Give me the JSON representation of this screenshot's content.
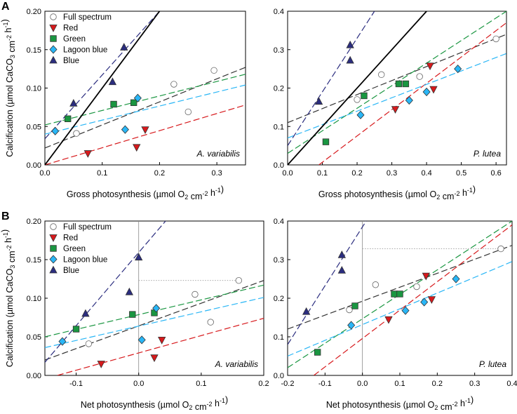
{
  "chart_data": [
    {
      "type": "scatter",
      "panel_label": "A",
      "species": "A. variabilis",
      "xlabel": "Gross photosynthesis (µmol O2 cm-2 h-1)",
      "ylabel": "Calcification (µmol CaCO3 cm-2 h-1)",
      "xlim": [
        0,
        0.35
      ],
      "ylim": [
        0,
        0.2
      ],
      "xticks": [
        "0.0",
        "0.1",
        "0.2",
        "0.3"
      ],
      "xtick_values": [
        0,
        0.1,
        0.2,
        0.3
      ],
      "yticks": [
        "0.00",
        "0.05",
        "0.10",
        "0.15",
        "0.20"
      ],
      "ytick_values": [
        0,
        0.05,
        0.1,
        0.15,
        0.2
      ],
      "legend": true,
      "zero_line": false,
      "series": [
        {
          "name": "Full spectrum",
          "marker": "circle",
          "color": "#ffffff",
          "points": [
            [
              0.055,
              0.041
            ],
            [
              0.225,
              0.105
            ],
            [
              0.25,
              0.069
            ],
            [
              0.295,
              0.123
            ]
          ]
        },
        {
          "name": "Red",
          "marker": "triangle-down",
          "color": "#d7191c",
          "points": [
            [
              0.075,
              0.015
            ],
            [
              0.16,
              0.023
            ],
            [
              0.175,
              0.046
            ]
          ]
        },
        {
          "name": "Green",
          "marker": "square",
          "color": "#1a9641",
          "points": [
            [
              0.04,
              0.06
            ],
            [
              0.12,
              0.079
            ],
            [
              0.155,
              0.081
            ]
          ]
        },
        {
          "name": "Lagoon blue",
          "marker": "diamond",
          "color": "#29b6f6",
          "points": [
            [
              0.018,
              0.044
            ],
            [
              0.14,
              0.046
            ],
            [
              0.162,
              0.087
            ]
          ]
        },
        {
          "name": "Blue",
          "marker": "triangle-up",
          "color": "#2b2d7f",
          "points": [
            [
              0.05,
              0.08
            ],
            [
              0.118,
              0.108
            ],
            [
              0.138,
              0.153
            ]
          ]
        }
      ],
      "fit_lines": [
        {
          "series": "Full spectrum",
          "color": "#333333",
          "dash": true,
          "x": [
            0,
            0.35
          ],
          "y": [
            0.022,
            0.127
          ]
        },
        {
          "series": "Red",
          "color": "#d7191c",
          "dash": true,
          "x": [
            0,
            0.35
          ],
          "y": [
            0.0,
            0.078
          ]
        },
        {
          "series": "Green",
          "color": "#1a9641",
          "dash": true,
          "x": [
            0,
            0.35
          ],
          "y": [
            0.052,
            0.118
          ]
        },
        {
          "series": "Lagoon blue",
          "color": "#29b6f6",
          "dash": true,
          "x": [
            0,
            0.35
          ],
          "y": [
            0.04,
            0.104
          ]
        },
        {
          "series": "Blue",
          "color": "#2b2d7f",
          "dash": true,
          "x": [
            0,
            0.2
          ],
          "y": [
            0.034,
            0.2
          ]
        },
        {
          "series": "1:1",
          "color": "#000000",
          "dash": false,
          "x": [
            0,
            0.2
          ],
          "y": [
            0,
            0.2
          ]
        }
      ],
      "ref_lines": []
    },
    {
      "type": "scatter",
      "panel_label": "",
      "species": "P. lutea",
      "xlabel": "Gross photosynthesis (µmol O2 cm-2 h-1)",
      "ylabel": "",
      "xlim": [
        0,
        0.63
      ],
      "ylim": [
        0,
        0.4
      ],
      "xticks": [
        "0.0",
        "0.1",
        "0.2",
        "0.3",
        "0.4",
        "0.5",
        "0.6"
      ],
      "xtick_values": [
        0,
        0.1,
        0.2,
        0.3,
        0.4,
        0.5,
        0.6
      ],
      "yticks": [
        "0.0",
        "0.1",
        "0.2",
        "0.3",
        "0.4"
      ],
      "ytick_values": [
        0,
        0.1,
        0.2,
        0.3,
        0.4
      ],
      "legend": false,
      "zero_line": false,
      "series": [
        {
          "name": "Full spectrum",
          "marker": "circle",
          "color": "#ffffff",
          "points": [
            [
              0.2,
              0.17
            ],
            [
              0.27,
              0.235
            ],
            [
              0.38,
              0.23
            ],
            [
              0.6,
              0.328
            ]
          ]
        },
        {
          "name": "Red",
          "marker": "triangle-down",
          "color": "#d7191c",
          "points": [
            [
              0.31,
              0.145
            ],
            [
              0.41,
              0.258
            ],
            [
              0.42,
              0.197
            ]
          ]
        },
        {
          "name": "Green",
          "marker": "square",
          "color": "#1a9641",
          "points": [
            [
              0.11,
              0.06
            ],
            [
              0.22,
              0.18
            ],
            [
              0.32,
              0.211
            ],
            [
              0.34,
              0.211
            ]
          ]
        },
        {
          "name": "Lagoon blue",
          "marker": "diamond",
          "color": "#29b6f6",
          "points": [
            [
              0.21,
              0.13
            ],
            [
              0.35,
              0.168
            ],
            [
              0.4,
              0.19
            ],
            [
              0.49,
              0.25
            ]
          ]
        },
        {
          "name": "Blue",
          "marker": "triangle-up",
          "color": "#2b2d7f",
          "points": [
            [
              0.09,
              0.165
            ],
            [
              0.18,
              0.312
            ],
            [
              0.18,
              0.272
            ]
          ]
        }
      ],
      "fit_lines": [
        {
          "series": "Full spectrum",
          "color": "#333333",
          "dash": true,
          "x": [
            0,
            0.63
          ],
          "y": [
            0.11,
            0.34
          ]
        },
        {
          "series": "Red",
          "color": "#d7191c",
          "dash": true,
          "x": [
            0.09,
            0.63
          ],
          "y": [
            0.0,
            0.37
          ]
        },
        {
          "series": "Green",
          "color": "#1a9641",
          "dash": true,
          "x": [
            0,
            0.63
          ],
          "y": [
            0.03,
            0.4
          ]
        },
        {
          "series": "Lagoon blue",
          "color": "#29b6f6",
          "dash": true,
          "x": [
            0,
            0.63
          ],
          "y": [
            0.07,
            0.29
          ]
        },
        {
          "series": "Blue",
          "color": "#2b2d7f",
          "dash": true,
          "x": [
            0,
            0.25
          ],
          "y": [
            0.05,
            0.4
          ]
        },
        {
          "series": "1:1",
          "color": "#000000",
          "dash": false,
          "x": [
            0,
            0.4
          ],
          "y": [
            0,
            0.4
          ]
        }
      ],
      "ref_lines": []
    },
    {
      "type": "scatter",
      "panel_label": "B",
      "species": "A. variabilis",
      "xlabel": "Net photosynthesis (µmol O2 cm-2 h-1)",
      "ylabel": "Calcification (µmol CaCO3 cm-2 h-1)",
      "xlim": [
        -0.15,
        0.2
      ],
      "ylim": [
        0,
        0.2
      ],
      "xticks": [
        "-0.1",
        "0.0",
        "0.1",
        "0.2"
      ],
      "xtick_values": [
        -0.1,
        0,
        0.1,
        0.2
      ],
      "yticks": [
        "0.00",
        "0.05",
        "0.10",
        "0.15",
        "0.20"
      ],
      "ytick_values": [
        0,
        0.05,
        0.1,
        0.15,
        0.2
      ],
      "legend": true,
      "zero_line": true,
      "series": [
        {
          "name": "Full spectrum",
          "marker": "circle",
          "color": "#ffffff",
          "points": [
            [
              -0.08,
              0.041
            ],
            [
              0.09,
              0.105
            ],
            [
              0.115,
              0.069
            ],
            [
              0.16,
              0.123
            ]
          ]
        },
        {
          "name": "Red",
          "marker": "triangle-down",
          "color": "#d7191c",
          "points": [
            [
              -0.06,
              0.015
            ],
            [
              0.025,
              0.023
            ],
            [
              0.037,
              0.046
            ]
          ]
        },
        {
          "name": "Green",
          "marker": "square",
          "color": "#1a9641",
          "points": [
            [
              -0.1,
              0.06
            ],
            [
              -0.01,
              0.079
            ],
            [
              0.025,
              0.081
            ]
          ]
        },
        {
          "name": "Lagoon blue",
          "marker": "diamond",
          "color": "#29b6f6",
          "points": [
            [
              -0.122,
              0.044
            ],
            [
              0.005,
              0.046
            ],
            [
              0.028,
              0.087
            ]
          ]
        },
        {
          "name": "Blue",
          "marker": "triangle-up",
          "color": "#2b2d7f",
          "points": [
            [
              -0.085,
              0.08
            ],
            [
              -0.015,
              0.108
            ],
            [
              0.0,
              0.153
            ]
          ]
        }
      ],
      "fit_lines": [
        {
          "series": "Full spectrum",
          "color": "#333333",
          "dash": true,
          "x": [
            -0.15,
            0.2
          ],
          "y": [
            0.02,
            0.123
          ]
        },
        {
          "series": "Red",
          "color": "#d7191c",
          "dash": true,
          "x": [
            -0.13,
            0.2
          ],
          "y": [
            0.0,
            0.074
          ]
        },
        {
          "series": "Green",
          "color": "#1a9641",
          "dash": true,
          "x": [
            -0.15,
            0.2
          ],
          "y": [
            0.05,
            0.117
          ]
        },
        {
          "series": "Lagoon blue",
          "color": "#29b6f6",
          "dash": true,
          "x": [
            -0.15,
            0.2
          ],
          "y": [
            0.036,
            0.101
          ]
        },
        {
          "series": "Blue",
          "color": "#2b2d7f",
          "dash": true,
          "x": [
            -0.15,
            0.043
          ],
          "y": [
            0.017,
            0.2
          ]
        }
      ],
      "ref_lines": [
        {
          "orientation": "horizontal",
          "y": 0.123,
          "x": [
            0.0,
            0.16
          ]
        }
      ]
    },
    {
      "type": "scatter",
      "panel_label": "",
      "species": "P. lutea",
      "xlabel": "Net photosynthesis (µmol O2 cm-2 h-1)",
      "ylabel": "",
      "xlim": [
        -0.2,
        0.4
      ],
      "ylim": [
        0,
        0.4
      ],
      "xticks": [
        "-0.2",
        "-0.1",
        "0.0",
        "0.1",
        "0.2",
        "0.3",
        "0.4"
      ],
      "xtick_values": [
        -0.2,
        -0.1,
        0,
        0.1,
        0.2,
        0.3,
        0.4
      ],
      "yticks": [
        "0.0",
        "0.1",
        "0.2",
        "0.3",
        "0.4"
      ],
      "ytick_values": [
        0,
        0.1,
        0.2,
        0.3,
        0.4
      ],
      "legend": false,
      "zero_line": true,
      "series": [
        {
          "name": "Full spectrum",
          "marker": "circle",
          "color": "#ffffff",
          "points": [
            [
              -0.035,
              0.17
            ],
            [
              0.035,
              0.235
            ],
            [
              0.145,
              0.23
            ],
            [
              0.37,
              0.328
            ]
          ]
        },
        {
          "name": "Red",
          "marker": "triangle-down",
          "color": "#d7191c",
          "points": [
            [
              0.07,
              0.145
            ],
            [
              0.17,
              0.258
            ],
            [
              0.185,
              0.197
            ]
          ]
        },
        {
          "name": "Green",
          "marker": "square",
          "color": "#1a9641",
          "points": [
            [
              -0.12,
              0.06
            ],
            [
              -0.02,
              0.18
            ],
            [
              0.085,
              0.211
            ],
            [
              0.1,
              0.211
            ]
          ]
        },
        {
          "name": "Lagoon blue",
          "marker": "diamond",
          "color": "#29b6f6",
          "points": [
            [
              -0.03,
              0.13
            ],
            [
              0.115,
              0.168
            ],
            [
              0.165,
              0.19
            ],
            [
              0.25,
              0.25
            ]
          ]
        },
        {
          "name": "Blue",
          "marker": "triangle-up",
          "color": "#2b2d7f",
          "points": [
            [
              -0.15,
              0.165
            ],
            [
              -0.055,
              0.312
            ],
            [
              -0.055,
              0.272
            ]
          ]
        }
      ],
      "fit_lines": [
        {
          "series": "Full spectrum",
          "color": "#333333",
          "dash": true,
          "x": [
            -0.2,
            0.4
          ],
          "y": [
            0.12,
            0.337
          ]
        },
        {
          "series": "Red",
          "color": "#d7191c",
          "dash": true,
          "x": [
            -0.13,
            0.4
          ],
          "y": [
            0.0,
            0.39
          ]
        },
        {
          "series": "Green",
          "color": "#1a9641",
          "dash": true,
          "x": [
            -0.2,
            0.4
          ],
          "y": [
            0.02,
            0.4
          ]
        },
        {
          "series": "Lagoon blue",
          "color": "#29b6f6",
          "dash": true,
          "x": [
            -0.2,
            0.4
          ],
          "y": [
            0.05,
            0.295
          ]
        },
        {
          "series": "Blue",
          "color": "#2b2d7f",
          "dash": true,
          "x": [
            -0.2,
            0.01
          ],
          "y": [
            0.08,
            0.4
          ]
        }
      ],
      "ref_lines": [
        {
          "orientation": "horizontal",
          "y": 0.328,
          "x": [
            0.0,
            0.37
          ]
        }
      ]
    }
  ]
}
